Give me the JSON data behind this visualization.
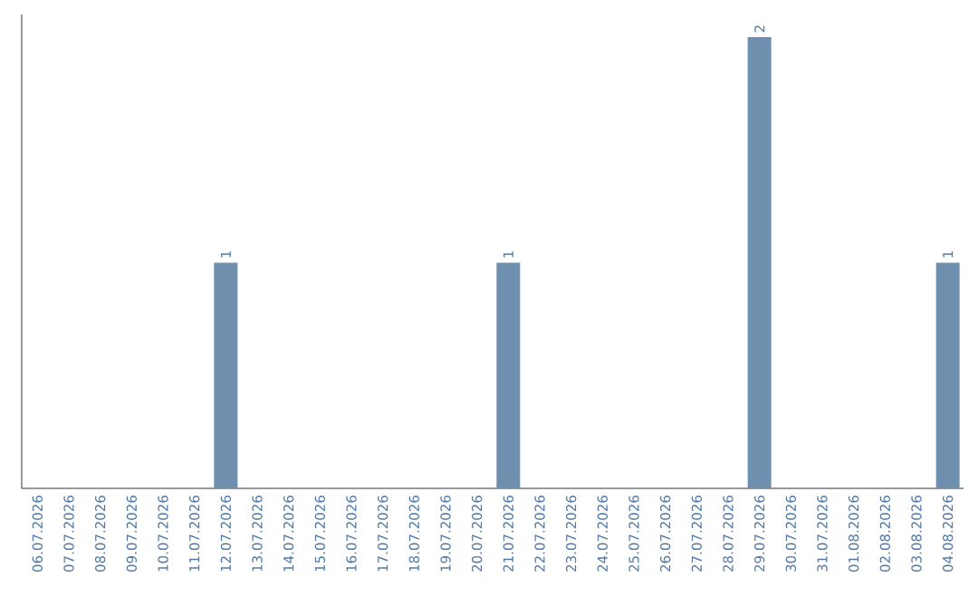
{
  "chart_data": {
    "type": "bar",
    "categories": [
      "06.07.2026",
      "07.07.2026",
      "08.07.2026",
      "09.07.2026",
      "10.07.2026",
      "11.07.2026",
      "12.07.2026",
      "13.07.2026",
      "14.07.2026",
      "15.07.2026",
      "16.07.2026",
      "17.07.2026",
      "18.07.2026",
      "19.07.2026",
      "20.07.2026",
      "21.07.2026",
      "22.07.2026",
      "23.07.2026",
      "24.07.2026",
      "25.07.2026",
      "26.07.2026",
      "27.07.2026",
      "28.07.2026",
      "29.07.2026",
      "30.07.2026",
      "31.07.2026",
      "01.08.2026",
      "02.08.2026",
      "03.08.2026",
      "04.08.2026"
    ],
    "values": [
      0,
      0,
      0,
      0,
      0,
      0,
      1,
      0,
      0,
      0,
      0,
      0,
      0,
      0,
      0,
      1,
      0,
      0,
      0,
      0,
      0,
      0,
      0,
      2,
      0,
      0,
      0,
      0,
      0,
      1
    ],
    "color": "#6f8fae",
    "ylim": [
      0,
      2.1
    ],
    "tick_labels": "x",
    "value_labels": [
      null,
      null,
      null,
      null,
      null,
      null,
      "1",
      null,
      null,
      null,
      null,
      null,
      null,
      null,
      null,
      "1",
      null,
      null,
      null,
      null,
      null,
      null,
      null,
      "2",
      null,
      null,
      null,
      null,
      null,
      "1"
    ]
  }
}
